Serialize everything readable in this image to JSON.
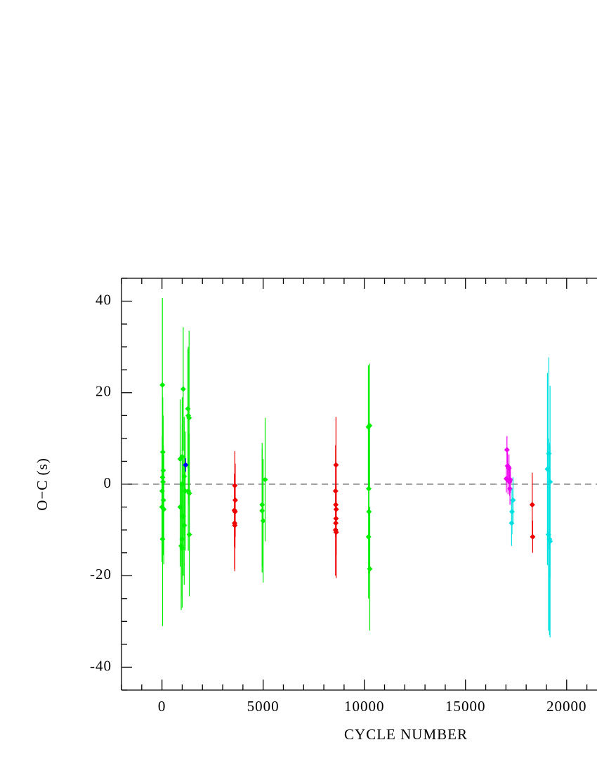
{
  "chart_data": {
    "type": "scatter",
    "x_label": "CYCLE NUMBER",
    "y_label": "O−C (s)",
    "xlim": [
      -2000,
      21500
    ],
    "ylim": [
      -45,
      45
    ],
    "xticks": [
      0,
      5000,
      10000,
      15000,
      20000
    ],
    "yticks": [
      -40,
      -20,
      0,
      20,
      40
    ],
    "x_minor_ticks": [
      -2000,
      -1000,
      1000,
      2000,
      3000,
      4000,
      6000,
      7000,
      8000,
      9000,
      11000,
      12000,
      13000,
      14000,
      16000,
      17000,
      18000,
      19000,
      21000
    ],
    "y_minor_ticks": [
      -45,
      -35,
      -30,
      -25,
      -15,
      -10,
      -5,
      5,
      10,
      15,
      25,
      30,
      35,
      45
    ],
    "hline": 0,
    "series": [
      {
        "color": "#00ee00",
        "x": [
          20,
          40,
          60,
          30,
          50,
          10,
          70,
          0,
          90,
          30,
          1050,
          900,
          1000,
          1100,
          1000,
          1150,
          900,
          1050,
          1100,
          1000,
          950,
          1000,
          1280,
          1300,
          1340,
          1300,
          1350,
          1350,
          4950,
          4950,
          5000,
          5100,
          10200,
          10260,
          10220,
          10230,
          10210,
          10270
        ],
        "values": [
          21.7,
          7,
          3,
          1.5,
          0.5,
          -1.5,
          -3.5,
          -5,
          -5.5,
          -12,
          20.8,
          5.5,
          6,
          1.7,
          0,
          -1.5,
          -5,
          -7,
          -9,
          -12,
          -13.5,
          -14,
          16.5,
          15,
          14.5,
          -1.5,
          -2,
          -11,
          -4.5,
          -5.8,
          -8,
          1,
          12.5,
          12.8,
          -1,
          -6,
          -11.5,
          -18.5
        ],
        "errors": [
          19,
          12,
          12,
          12,
          12,
          12,
          12,
          12,
          12,
          19,
          13.5,
          13,
          13,
          13,
          13,
          13,
          13,
          13,
          13,
          13,
          14,
          13,
          13,
          15,
          19,
          13,
          13,
          13.5,
          13.5,
          13.5,
          13.5,
          13.5,
          13.5,
          13.5,
          13.5,
          13.5,
          13.5,
          13.5
        ]
      },
      {
        "color": "#0000ff",
        "x": [
          1170
        ],
        "values": [
          4.2
        ],
        "errors": [
          1.5
        ]
      },
      {
        "color": "#ee0000",
        "x": [
          3600,
          3620,
          3580,
          3610,
          3590,
          3600,
          8600,
          8580,
          8590,
          8610,
          8600,
          8590,
          8580,
          8610,
          18300,
          18320
        ],
        "values": [
          -0.3,
          -3.5,
          -5.7,
          -6,
          -8.5,
          -9,
          4.2,
          -1.5,
          -4.5,
          -5.5,
          -7.5,
          -8.5,
          -10,
          -10.5,
          -4.5,
          -11.5
        ],
        "errors": [
          7.5,
          8,
          8,
          8,
          10,
          10,
          10.5,
          10,
          10,
          10,
          10,
          10,
          10,
          10,
          7,
          3.5
        ]
      },
      {
        "color": "#ee00ee",
        "x": [
          17050,
          17080,
          17150,
          17020,
          17100,
          17180,
          17200,
          17220
        ],
        "values": [
          7.5,
          4,
          3.5,
          1.2,
          0.8,
          0.5,
          -1,
          1
        ],
        "errors": [
          3,
          3,
          3,
          3,
          3,
          3,
          3.5,
          3
        ]
      },
      {
        "color": "#00e0e0",
        "x": [
          17350,
          17300,
          17280,
          19050,
          19120,
          19180,
          19100,
          19150,
          19180
        ],
        "values": [
          -3.5,
          -6,
          -8.5,
          3.3,
          6.7,
          0.5,
          -11,
          -12,
          -12.5
        ],
        "errors": [
          5,
          5,
          5,
          21,
          21,
          21,
          21,
          21,
          21
        ]
      }
    ]
  }
}
